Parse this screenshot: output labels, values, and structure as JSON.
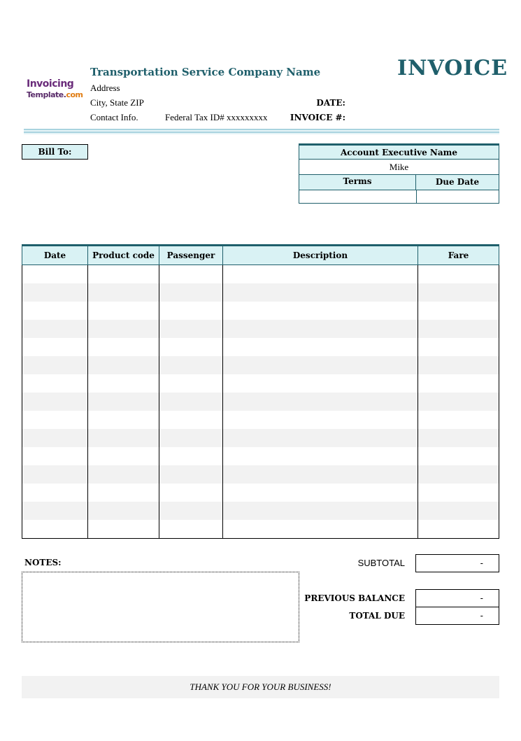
{
  "logo": {
    "line1": "Invoicing",
    "line2a": "Template.",
    "line2b": "com"
  },
  "company": {
    "name": "Transportation Service Company Name",
    "address": "Address",
    "city": "City, State ZIP",
    "contact": "Contact Info.",
    "tax_id": "Federal Tax ID# xxxxxxxxx"
  },
  "title": "INVOICE",
  "meta": {
    "date_label": "DATE:",
    "invoice_label": "INVOICE #:"
  },
  "bill_to": "Bill To:",
  "account": {
    "header": "Account Executive Name",
    "name": "Mike",
    "terms_label": "Terms",
    "due_label": "Due Date"
  },
  "table": {
    "columns": [
      "Date",
      "Product code",
      "Passenger",
      "Description",
      "Fare"
    ],
    "row_count": 15
  },
  "notes_label": "NOTES:",
  "totals": {
    "subtotal_label": "SUBTOTAL",
    "subtotal": "-",
    "prev_label": "PREVIOUS BALANCE",
    "prev": "-",
    "total_label": "TOTAL DUE",
    "total": "-"
  },
  "footer": "THANK YOU FOR YOUR BUSINESS!",
  "colors": {
    "accent": "#1f5f6b",
    "header_fill": "#d9f2f4",
    "stripe": "#f2f2f2"
  }
}
